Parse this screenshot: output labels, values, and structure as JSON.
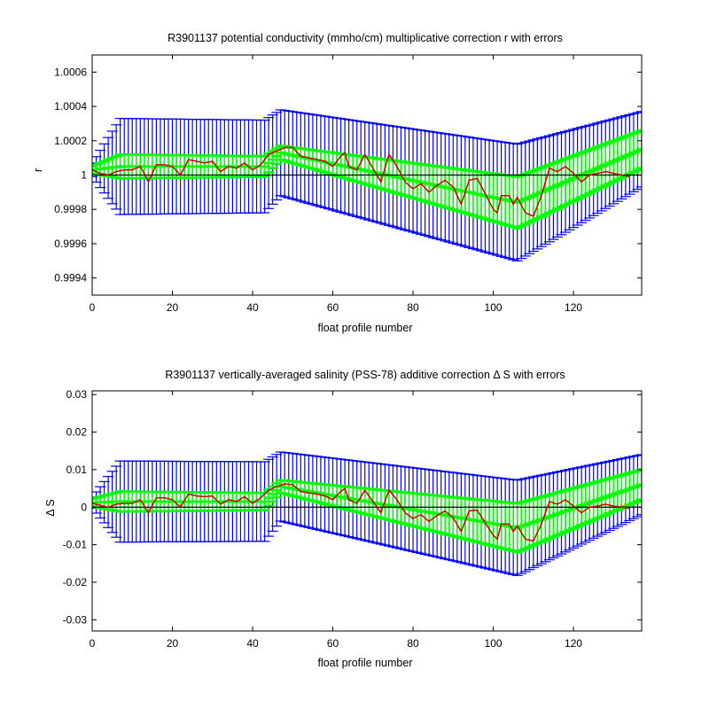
{
  "colors": {
    "error_outer": "#0000ff",
    "error_inner": "#00ff00",
    "correction": "#cc0000",
    "reference": "#000000",
    "frame": "#000000"
  },
  "chart_data": [
    {
      "type": "line",
      "title": "R3901137 potential conductivity (mmho/cm) multiplicative correction r with errors",
      "xlabel": "float profile number",
      "ylabel": "r",
      "xlim": [
        0,
        137
      ],
      "ylim": [
        0.9993,
        1.0007
      ],
      "xticks": [
        0,
        20,
        40,
        60,
        80,
        100,
        120
      ],
      "xtick_labels": [
        "0",
        "20",
        "40",
        "60",
        "80",
        "100",
        "120"
      ],
      "yticks": [
        0.9994,
        0.9996,
        0.9998,
        1.0,
        1.0002,
        1.0004,
        1.0006
      ],
      "ytick_labels": [
        "0.9994",
        "0.9996",
        "0.9998",
        "1",
        "1.0002",
        "1.0004",
        "1.0006"
      ],
      "reference_line": 1.0,
      "fit_knots": {
        "x": [
          0,
          7,
          43,
          47,
          106,
          137
        ],
        "center": [
          1.00003,
          1.00005,
          1.00005,
          1.00013,
          0.99984,
          1.00015
        ],
        "inner_err": [
          2e-05,
          7e-05,
          6e-05,
          4e-05,
          0.00015,
          0.00011
        ],
        "outer_err": [
          4e-05,
          0.00028,
          0.00027,
          0.00025,
          0.00034,
          0.00022
        ]
      },
      "correction_knots": {
        "x": [
          0,
          2,
          4,
          6,
          8,
          10,
          12,
          13,
          14,
          16,
          18,
          20,
          22,
          24,
          26,
          28,
          30,
          32,
          34,
          36,
          38,
          40,
          42,
          44,
          46,
          48,
          50,
          52,
          54,
          56,
          58,
          60,
          62,
          63,
          64,
          66,
          68,
          70,
          72,
          74,
          76,
          78,
          80,
          82,
          84,
          86,
          88,
          90,
          92,
          94,
          96,
          98,
          100,
          101,
          102,
          104,
          105,
          106,
          108,
          110,
          112,
          114,
          116,
          118,
          120,
          122,
          124,
          126,
          128,
          130,
          132,
          134
        ],
        "y": [
          1.00003,
          1.00001,
          1.0,
          1.00002,
          1.00003,
          1.00003,
          1.00005,
          1.00001,
          0.99996,
          1.00006,
          1.00006,
          1.00005,
          1.0,
          1.00009,
          1.00008,
          1.00007,
          1.00008,
          1.00002,
          1.00005,
          1.00004,
          1.00007,
          1.00003,
          1.00006,
          1.00012,
          1.00014,
          1.00016,
          1.00016,
          1.00011,
          1.0001,
          1.00009,
          1.00008,
          1.00005,
          1.00011,
          1.00013,
          1.00005,
          1.00003,
          1.00012,
          1.00004,
          0.99996,
          1.00012,
          1.00005,
          0.99996,
          0.99992,
          0.99995,
          0.9999,
          0.99994,
          0.99997,
          0.99993,
          0.99983,
          0.99997,
          0.99998,
          0.99989,
          0.9998,
          0.99978,
          0.99988,
          0.99988,
          0.99983,
          0.99987,
          0.99978,
          0.99976,
          0.99988,
          1.00004,
          1.00002,
          1.00005,
          1.00001,
          0.99996,
          1.0,
          1.00001,
          1.00002,
          1.00001,
          1.0,
          0.99999
        ]
      }
    },
    {
      "type": "line",
      "title": "R3901137 vertically-averaged salinity (PSS-78) additive correction Δ S with errors",
      "xlabel": "float profile number",
      "ylabel": "Δ S",
      "xlim": [
        0,
        137
      ],
      "ylim": [
        -0.033,
        0.031
      ],
      "xticks": [
        0,
        20,
        40,
        60,
        80,
        100,
        120
      ],
      "xtick_labels": [
        "0",
        "20",
        "40",
        "60",
        "80",
        "100",
        "120"
      ],
      "yticks": [
        -0.03,
        -0.02,
        -0.01,
        0,
        0.01,
        0.02,
        0.03
      ],
      "ytick_labels": [
        "-0.03",
        "-0.02",
        "-0.01",
        "0",
        "0.01",
        "0.02",
        "0.03"
      ],
      "reference_line": 0,
      "fit_knots": {
        "x": [
          0,
          7,
          43,
          47,
          106,
          137
        ],
        "center": [
          0.0012,
          0.0015,
          0.0015,
          0.0055,
          -0.0055,
          0.006
        ],
        "inner_err": [
          0.001,
          0.0027,
          0.0023,
          0.0017,
          0.0065,
          0.004
        ],
        "outer_err": [
          0.0015,
          0.0108,
          0.0106,
          0.0092,
          0.0127,
          0.008
        ]
      },
      "correction_knots": {
        "x": [
          0,
          2,
          4,
          6,
          8,
          10,
          12,
          13,
          14,
          16,
          18,
          20,
          22,
          24,
          26,
          28,
          30,
          32,
          34,
          36,
          38,
          40,
          42,
          44,
          46,
          48,
          50,
          52,
          54,
          56,
          58,
          60,
          62,
          63,
          64,
          66,
          68,
          70,
          72,
          74,
          76,
          78,
          80,
          82,
          84,
          86,
          88,
          90,
          92,
          94,
          96,
          98,
          100,
          101,
          102,
          104,
          105,
          106,
          108,
          110,
          112,
          114,
          116,
          118,
          120,
          122,
          124,
          126,
          128,
          130,
          132,
          134
        ],
        "y": [
          0.001,
          0.0005,
          0.0,
          0.0008,
          0.001,
          0.001,
          0.002,
          0.0003,
          -0.0015,
          0.0025,
          0.0025,
          0.002,
          0.0,
          0.0035,
          0.003,
          0.0028,
          0.003,
          0.0008,
          0.002,
          0.0015,
          0.0028,
          0.001,
          0.0025,
          0.0045,
          0.0055,
          0.0062,
          0.006,
          0.0042,
          0.0038,
          0.0035,
          0.003,
          0.002,
          0.0042,
          0.005,
          0.002,
          0.001,
          0.0045,
          0.0015,
          -0.0015,
          0.0045,
          0.002,
          -0.0015,
          -0.003,
          -0.002,
          -0.0038,
          -0.0022,
          -0.001,
          -0.0028,
          -0.0065,
          -0.001,
          -0.0008,
          -0.0042,
          -0.0075,
          -0.0085,
          -0.0045,
          -0.0045,
          -0.0065,
          -0.005,
          -0.0085,
          -0.009,
          -0.0045,
          0.0015,
          0.0008,
          0.002,
          0.0003,
          -0.0015,
          0.0,
          0.0003,
          0.0008,
          0.0003,
          0.0,
          -0.0003
        ]
      }
    }
  ]
}
